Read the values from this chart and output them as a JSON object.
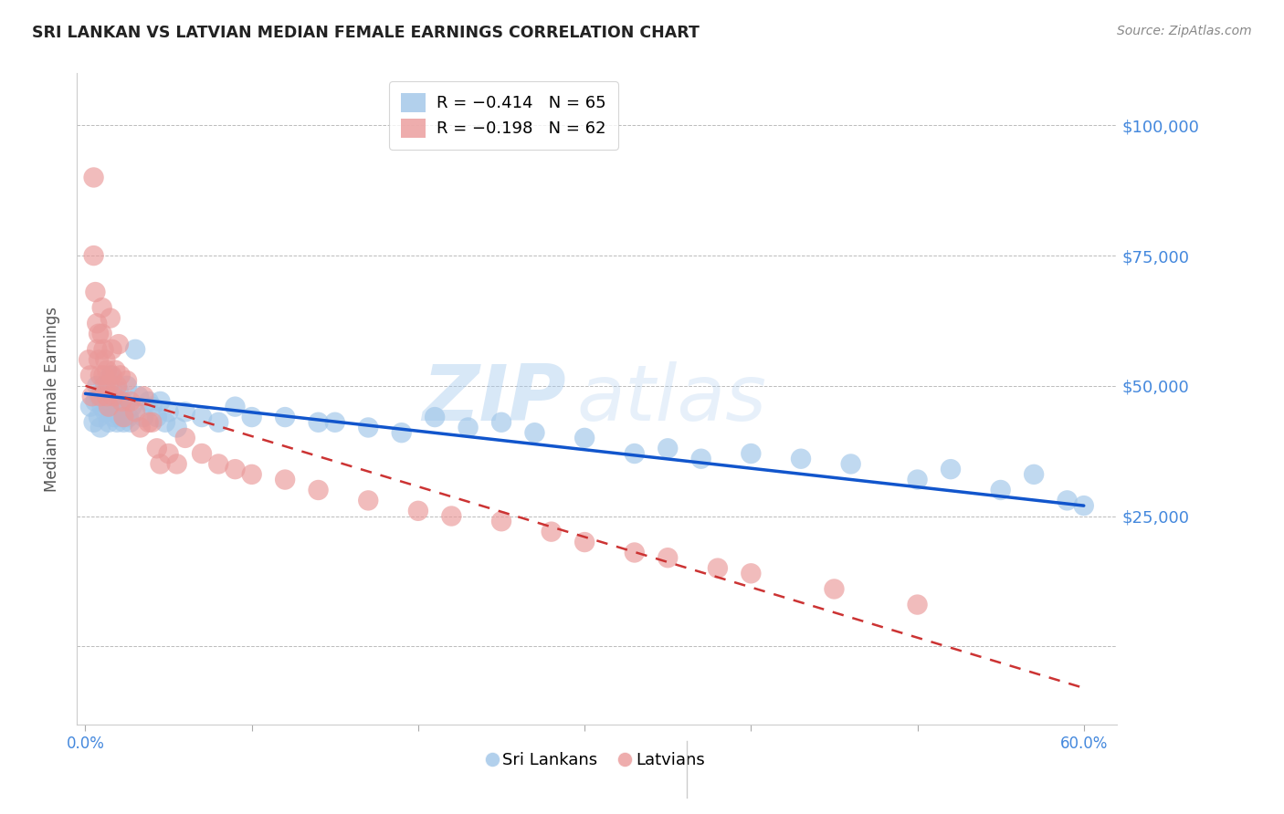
{
  "title": "SRI LANKAN VS LATVIAN MEDIAN FEMALE EARNINGS CORRELATION CHART",
  "source": "Source: ZipAtlas.com",
  "ylabel": "Median Female Earnings",
  "watermark_zip": "ZIP",
  "watermark_atlas": "atlas",
  "xlim": [
    -0.005,
    0.62
  ],
  "ylim": [
    -15000,
    110000
  ],
  "yticks": [
    0,
    25000,
    50000,
    75000,
    100000
  ],
  "ytick_labels": [
    "",
    "$25,000",
    "$50,000",
    "$75,000",
    "$100,000"
  ],
  "xticks": [
    0.0,
    0.1,
    0.2,
    0.3,
    0.4,
    0.5,
    0.6
  ],
  "xtick_labels": [
    "0.0%",
    "",
    "",
    "",
    "",
    "",
    "60.0%"
  ],
  "legend_blue_r": "R = −0.414",
  "legend_blue_n": "N = 65",
  "legend_pink_r": "R = −0.198",
  "legend_pink_n": "N = 62",
  "blue_color": "#9fc5e8",
  "pink_color": "#ea9999",
  "trend_blue_color": "#1155cc",
  "trend_pink_color": "#cc3333",
  "axis_color": "#4488dd",
  "grid_color": "#bbbbbb",
  "title_color": "#222222",
  "source_color": "#888888",
  "sri_lankans_x": [
    0.003,
    0.005,
    0.006,
    0.007,
    0.008,
    0.008,
    0.009,
    0.01,
    0.011,
    0.012,
    0.013,
    0.014,
    0.015,
    0.015,
    0.016,
    0.017,
    0.018,
    0.019,
    0.02,
    0.02,
    0.021,
    0.022,
    0.023,
    0.024,
    0.025,
    0.026,
    0.027,
    0.028,
    0.03,
    0.032,
    0.035,
    0.038,
    0.04,
    0.043,
    0.045,
    0.048,
    0.05,
    0.055,
    0.06,
    0.07,
    0.08,
    0.09,
    0.1,
    0.12,
    0.14,
    0.15,
    0.17,
    0.19,
    0.21,
    0.23,
    0.25,
    0.27,
    0.3,
    0.33,
    0.35,
    0.37,
    0.4,
    0.43,
    0.46,
    0.5,
    0.52,
    0.55,
    0.57,
    0.59,
    0.6
  ],
  "sri_lankans_y": [
    46000,
    43000,
    47000,
    50000,
    44000,
    48000,
    42000,
    46000,
    50000,
    45000,
    48000,
    43000,
    47000,
    52000,
    45000,
    44000,
    48000,
    43000,
    46000,
    49000,
    44000,
    47000,
    43000,
    46000,
    50000,
    44000,
    43000,
    46000,
    57000,
    48000,
    44000,
    47000,
    46000,
    44000,
    47000,
    43000,
    45000,
    42000,
    45000,
    44000,
    43000,
    46000,
    44000,
    44000,
    43000,
    43000,
    42000,
    41000,
    44000,
    42000,
    43000,
    41000,
    40000,
    37000,
    38000,
    36000,
    37000,
    36000,
    35000,
    32000,
    34000,
    30000,
    33000,
    28000,
    27000
  ],
  "latvians_x": [
    0.002,
    0.003,
    0.004,
    0.005,
    0.005,
    0.006,
    0.007,
    0.007,
    0.008,
    0.008,
    0.009,
    0.009,
    0.01,
    0.01,
    0.011,
    0.011,
    0.012,
    0.012,
    0.013,
    0.013,
    0.014,
    0.014,
    0.015,
    0.016,
    0.016,
    0.017,
    0.018,
    0.019,
    0.02,
    0.021,
    0.022,
    0.023,
    0.025,
    0.027,
    0.03,
    0.033,
    0.035,
    0.038,
    0.04,
    0.043,
    0.045,
    0.05,
    0.055,
    0.06,
    0.07,
    0.08,
    0.09,
    0.1,
    0.12,
    0.14,
    0.17,
    0.2,
    0.22,
    0.25,
    0.28,
    0.3,
    0.33,
    0.35,
    0.38,
    0.4,
    0.45,
    0.5
  ],
  "latvians_y": [
    55000,
    52000,
    48000,
    90000,
    75000,
    68000,
    62000,
    57000,
    60000,
    55000,
    52000,
    48000,
    65000,
    60000,
    57000,
    52000,
    55000,
    50000,
    53000,
    48000,
    50000,
    46000,
    63000,
    57000,
    52000,
    48000,
    53000,
    50000,
    58000,
    52000,
    47000,
    44000,
    51000,
    47000,
    45000,
    42000,
    48000,
    43000,
    43000,
    38000,
    35000,
    37000,
    35000,
    40000,
    37000,
    35000,
    34000,
    33000,
    32000,
    30000,
    28000,
    26000,
    25000,
    24000,
    22000,
    20000,
    18000,
    17000,
    15000,
    14000,
    11000,
    8000
  ],
  "trend_blue_x0": 0.0,
  "trend_blue_y0": 48500,
  "trend_blue_x1": 0.6,
  "trend_blue_y1": 27000,
  "trend_pink_x0": 0.0,
  "trend_pink_y0": 50000,
  "trend_pink_x1": 0.6,
  "trend_pink_y1": -8000
}
